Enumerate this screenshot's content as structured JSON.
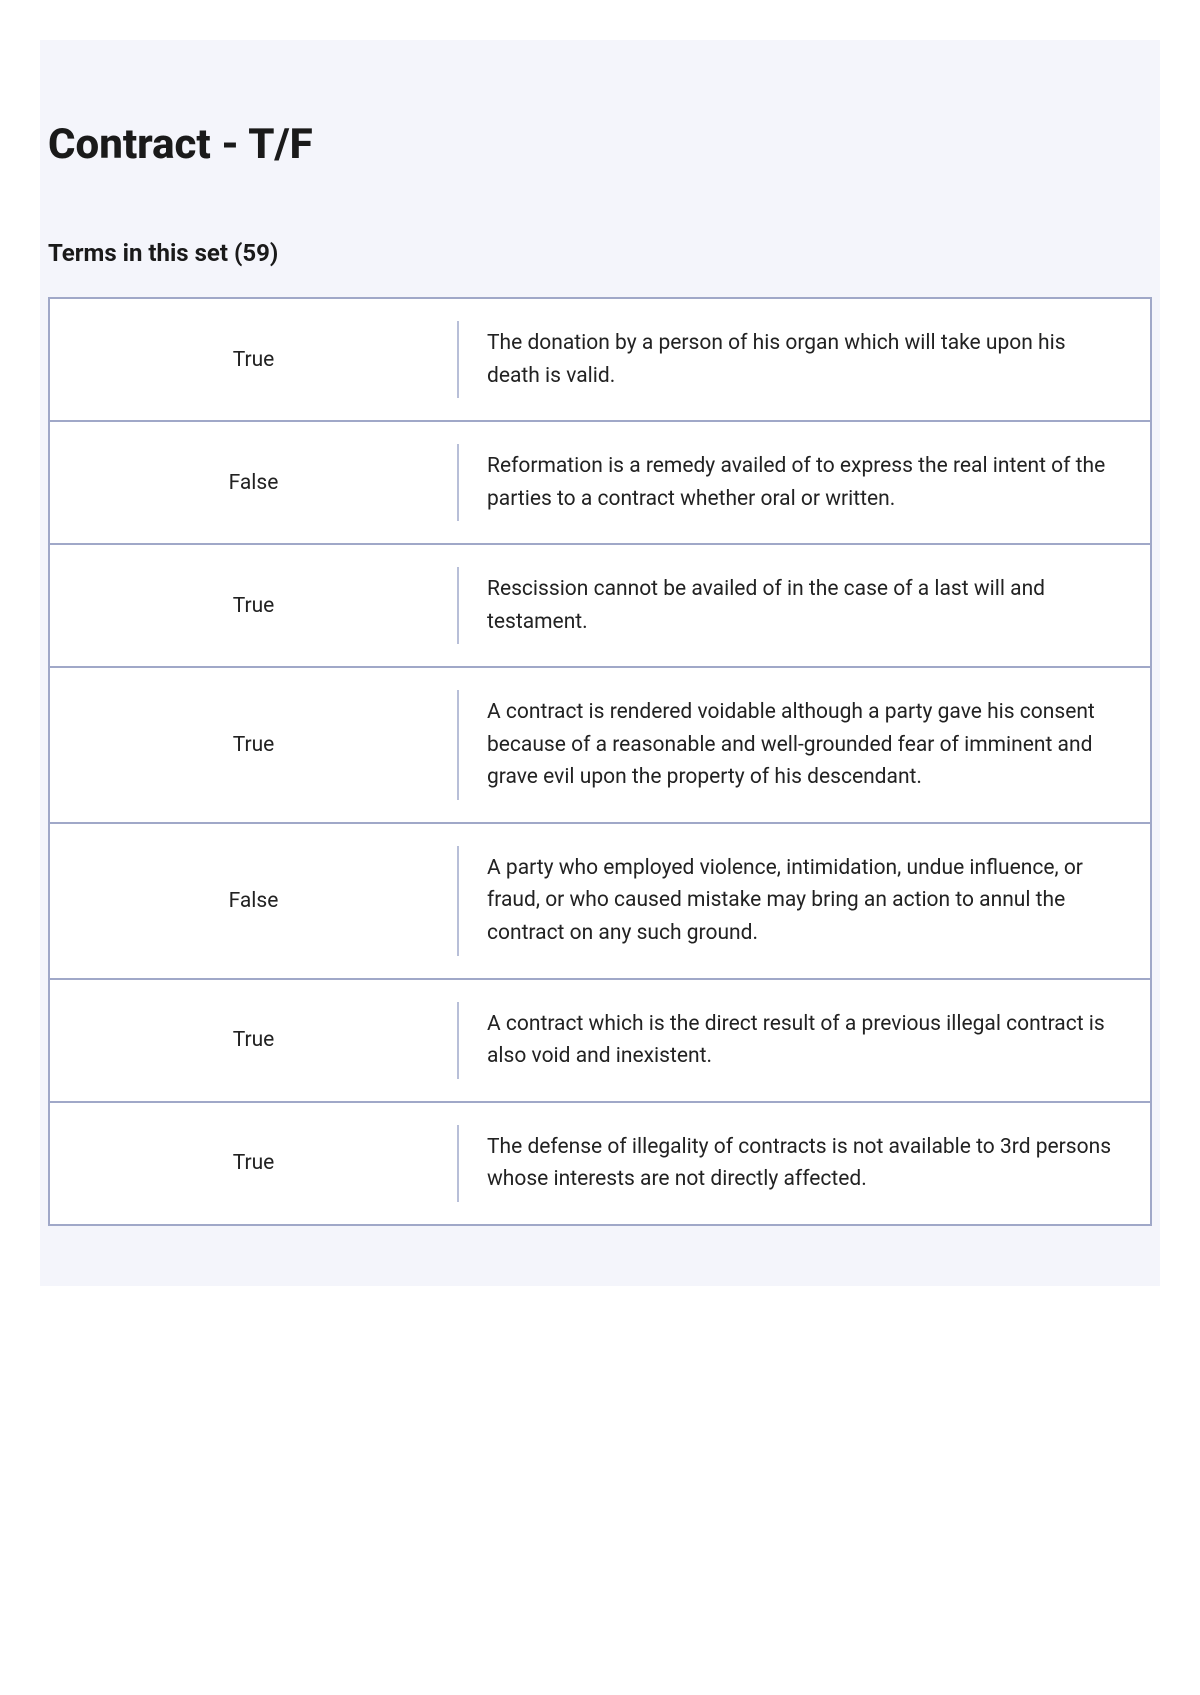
{
  "title": "Contract - T/F",
  "subtitle": "Terms in this set (59)",
  "table": {
    "border_color": "#a0a8c8",
    "divider_color": "#b8bfd8",
    "bg_color": "#ffffff",
    "page_bg": "#f4f5fb",
    "rows": [
      {
        "term": "True",
        "definition": "The donation by a person of his organ which will take upon his death is valid."
      },
      {
        "term": "False",
        "definition": "Reformation is a remedy availed of to express the real intent of the parties to a contract whether oral or written."
      },
      {
        "term": "True",
        "definition": "Rescission cannot be availed of in the case of a last will and testament."
      },
      {
        "term": "True",
        "definition": "A contract is rendered voidable although a party gave his consent because of a reasonable and well-grounded fear of imminent and grave evil upon the property of his descendant."
      },
      {
        "term": "False",
        "definition": "A party who employed violence, intimidation, undue influence, or fraud, or who caused mistake may bring an action to annul the contract on any such ground."
      },
      {
        "term": "True",
        "definition": "A contract which is the direct result of a previous illegal contract is also void and inexistent."
      },
      {
        "term": "True",
        "definition": "The defense of illegality of contracts is not available to 3rd persons whose interests are not directly affected."
      }
    ]
  }
}
